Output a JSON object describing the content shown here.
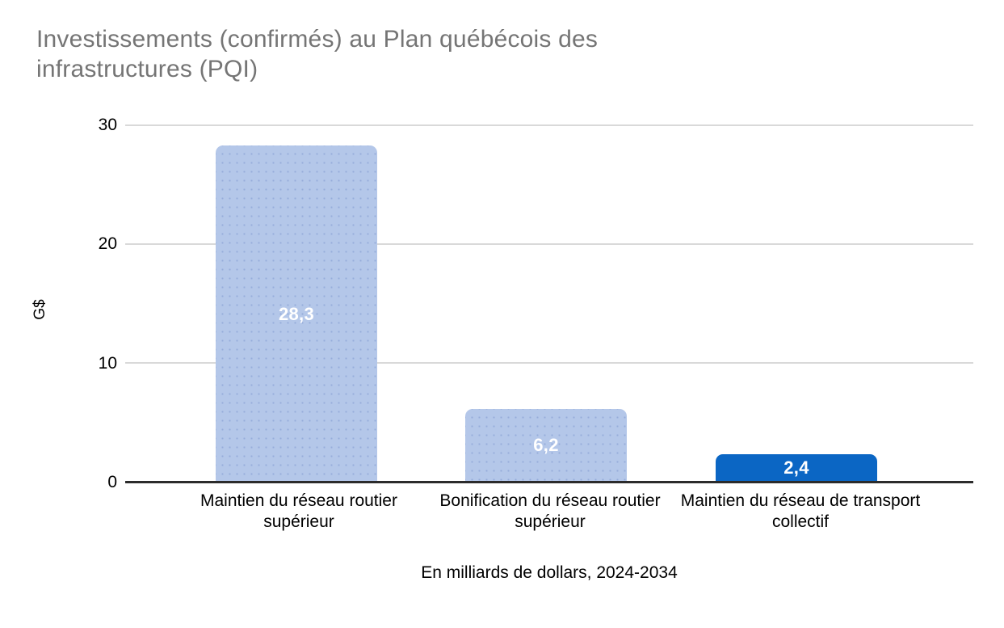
{
  "title": {
    "line1": "Investissements (confirmés) au Plan québécois des",
    "line2": "infrastructures (PQI)"
  },
  "y_axis": {
    "title": "G$",
    "ticks": {
      "t30": "30",
      "t20": "20",
      "t10": "10",
      "t0": "0"
    }
  },
  "x_axis": {
    "subtitle": "En milliards de dollars, 2024-2034"
  },
  "colors": {
    "title_text": "#757575",
    "gridline": "#d9d9d9",
    "baseline": "#2b2b2b",
    "light_bar": "#b4c7e9",
    "dark_bar": "#0b66c4",
    "value_label": "#ffffff"
  },
  "chart_data": {
    "type": "bar",
    "title": "Investissements (confirmés) au Plan québécois des infrastructures (PQI)",
    "categories": [
      "Maintien du réseau routier supérieur",
      "Bonification du réseau routier supérieur",
      "Maintien du réseau de transport collectif"
    ],
    "values": [
      28.3,
      6.2,
      2.4
    ],
    "value_labels": [
      "28,3",
      "6,2",
      "2,4"
    ],
    "bar_colors": [
      "#b4c7e9",
      "#b4c7e9",
      "#0b66c4"
    ],
    "textured": [
      true,
      true,
      false
    ],
    "ylabel": "G$",
    "xlabel": "En milliards de dollars, 2024-2034",
    "ylim": [
      0,
      30
    ],
    "yticks": [
      0,
      10,
      20,
      30
    ],
    "grid": true,
    "legend": false
  }
}
